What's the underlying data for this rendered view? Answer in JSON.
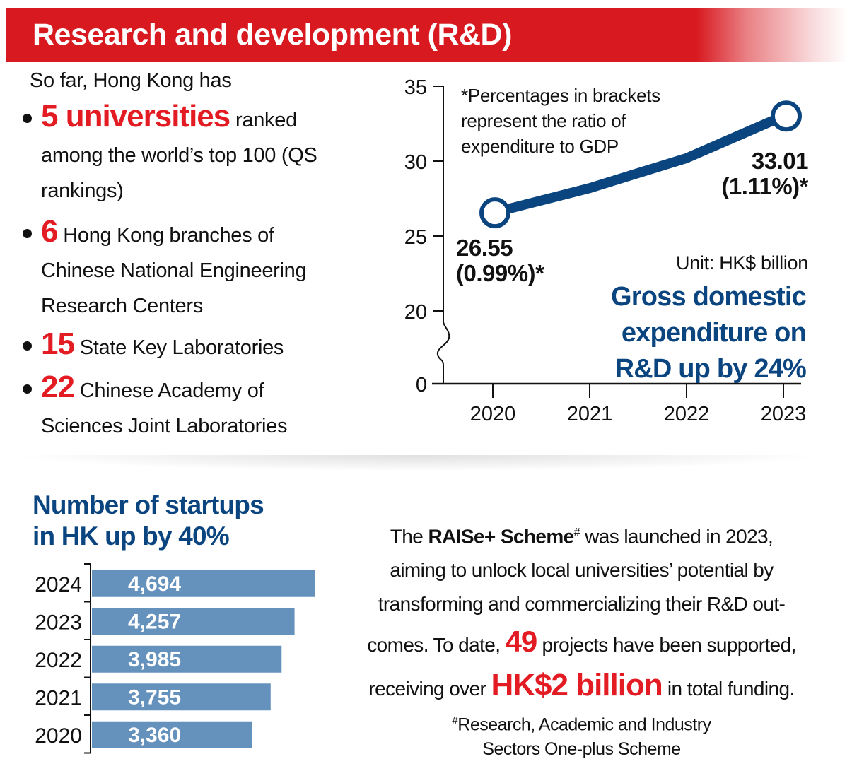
{
  "banner": {
    "title": "Research and development (R&D)"
  },
  "intro": "So far, Hong Kong has",
  "facts": [
    {
      "number": "5 universities",
      "text_inline": "ranked",
      "text_rest": [
        "among the world’s top 100 (QS",
        "rankings)"
      ]
    },
    {
      "number": "6",
      "text_inline": "Hong Kong branches of",
      "text_rest": [
        "Chinese National Engineering",
        "Research Centers"
      ]
    },
    {
      "number": "15",
      "text_inline": "State Key Laboratories",
      "text_rest": []
    },
    {
      "number": "22",
      "text_inline": "Chinese Academy of",
      "text_rest": [
        "Sciences Joint Laboratories"
      ]
    }
  ],
  "line_section": {
    "note": [
      "*Percentages in brackets",
      "represent the ratio of",
      "expenditure to GDP"
    ],
    "label_2020": [
      "26.55",
      "(0.99%)*"
    ],
    "label_2023": [
      "33.01",
      "(1.11%)*"
    ],
    "unit": "Unit: HK$ billion",
    "headline": [
      "Gross domestic",
      "expenditure on",
      "R&D up by 24%"
    ]
  },
  "startups_section": {
    "title": [
      "Number of startups",
      "in HK up by 40%"
    ]
  },
  "raise": {
    "pre": "The",
    "scheme_name": "RAISe+ Scheme",
    "sup": "#",
    "line1_rest": "was launched in 2023,",
    "line2": "aiming to unlock local universities’ potential by",
    "line3": "transforming and commercializing their R&D out-",
    "line4_pre": "comes. To date,",
    "projects_count": "49",
    "line4_post": "projects have been supported,",
    "line5_pre": "receiving over",
    "funding": "HK$2 billion",
    "line5_post": "in total funding."
  },
  "footnote": {
    "sup": "#",
    "line1": "Research, Academic and Industry",
    "line2": "Sectors One-plus Scheme"
  },
  "colors": {
    "red": "#e31b23",
    "banner_red": "#d81920",
    "navy": "#0b4580",
    "bar_blue": "#6592bd"
  },
  "chart_data": [
    {
      "type": "line",
      "title": "Gross domestic expenditure on R&D up by 24%",
      "unit": "HK$ billion",
      "x": [
        "2020",
        "2021",
        "2022",
        "2023"
      ],
      "series": [
        {
          "name": "Gross domestic expenditure on R&D",
          "values": [
            26.55,
            28.2,
            30.2,
            33.01
          ],
          "labeled_points": {
            "2020": "26.55 (0.99%)*",
            "2023": "33.01 (1.11%)*"
          }
        }
      ],
      "y_ticks": [
        0,
        20,
        25,
        30,
        35
      ],
      "ylim": [
        0,
        35
      ],
      "axis_break": "between 0 and 20",
      "grid": false,
      "legend": "none"
    },
    {
      "type": "bar",
      "orientation": "horizontal",
      "title": "Number of startups in HK up by 40%",
      "categories": [
        "2024",
        "2023",
        "2022",
        "2021",
        "2020"
      ],
      "values": [
        4694,
        4257,
        3985,
        3755,
        3360
      ],
      "value_labels": [
        "4,694",
        "4,257",
        "3,985",
        "3,755",
        "3,360"
      ],
      "xlim": [
        0,
        4694
      ],
      "grid": false,
      "legend": "none"
    }
  ]
}
